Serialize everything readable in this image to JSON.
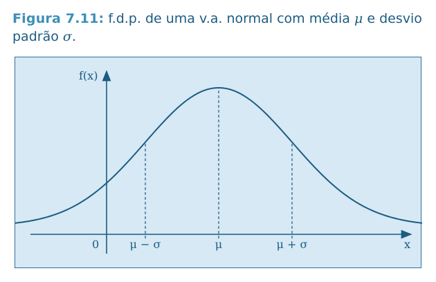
{
  "caption": {
    "label": "Figura 7.11:",
    "text_part1": "f.d.p. de uma v.a. normal com média",
    "mu_symbol": "μ",
    "text_part2": "e desvio padrão",
    "sigma_symbol": "σ",
    "text_end": "."
  },
  "chart_data": {
    "type": "line",
    "title": "",
    "ylabel": "f(x)",
    "xlabel": "x",
    "origin_label": "0",
    "tick_labels": [
      "μ − σ",
      "μ",
      "μ + σ"
    ],
    "series": [
      {
        "name": "",
        "mean": 0,
        "sd": 1,
        "x": [
          -3.6,
          -3.0,
          -2.5,
          -2.0,
          -1.5,
          -1.0,
          -0.5,
          0,
          0.5,
          1.0,
          1.5,
          2.0,
          2.5,
          3.0,
          3.6
        ],
        "y": [
          0.0006,
          0.0044,
          0.0175,
          0.054,
          0.1295,
          0.242,
          0.3521,
          0.3989,
          0.3521,
          0.242,
          0.1295,
          0.054,
          0.0175,
          0.0044,
          0.0006
        ]
      }
    ],
    "reference_lines_at_x": [
      -1,
      0,
      1
    ],
    "grid": false
  },
  "colors": {
    "curve": "#1c5b82",
    "axis": "#1c5b82",
    "panel_bg": "#d6e9f4",
    "label_accent": "#3d8fb8"
  }
}
